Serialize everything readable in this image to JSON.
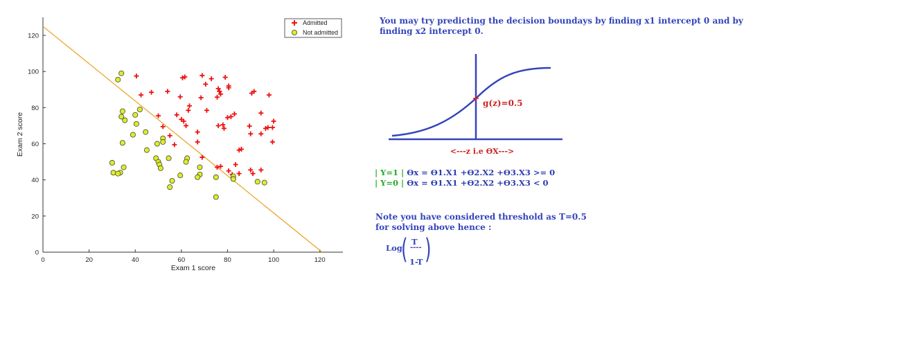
{
  "chart_data": {
    "type": "scatter",
    "xlabel": "Exam 1 score",
    "ylabel": "Exam 2 score",
    "xlim": [
      0,
      130
    ],
    "ylim": [
      0,
      130
    ],
    "xticks": [
      0,
      20,
      40,
      60,
      80,
      100,
      120
    ],
    "yticks": [
      0,
      20,
      40,
      60,
      80,
      100,
      120
    ],
    "grid": false,
    "legend_position": "top-right",
    "series": [
      {
        "name": "Admitted",
        "marker": "plus",
        "color": "#ee1111",
        "points": [
          [
            40.5,
            97.5
          ],
          [
            60.5,
            96.5
          ],
          [
            61.5,
            97.0
          ],
          [
            69,
            97.8
          ],
          [
            79,
            96.8
          ],
          [
            73,
            96
          ],
          [
            70.5,
            93
          ],
          [
            80.5,
            92
          ],
          [
            80.5,
            91
          ],
          [
            76,
            90.5
          ],
          [
            76.5,
            89
          ],
          [
            77,
            87.5
          ],
          [
            75.5,
            85.8
          ],
          [
            91.5,
            89
          ],
          [
            90.5,
            88
          ],
          [
            98,
            87
          ],
          [
            42.5,
            87
          ],
          [
            47,
            88.5
          ],
          [
            54,
            89
          ],
          [
            59.5,
            86
          ],
          [
            68.5,
            85.5
          ],
          [
            63.5,
            81
          ],
          [
            63,
            78.5
          ],
          [
            71,
            78.5
          ],
          [
            81.5,
            75
          ],
          [
            83,
            76.5
          ],
          [
            80,
            74.5
          ],
          [
            94.5,
            77
          ],
          [
            50,
            75.5
          ],
          [
            58,
            76
          ],
          [
            60,
            73.5
          ],
          [
            61,
            72.5
          ],
          [
            62,
            70
          ],
          [
            52,
            69.5
          ],
          [
            76,
            70
          ],
          [
            78,
            70.5
          ],
          [
            78.5,
            68.5
          ],
          [
            89.5,
            69.8
          ],
          [
            97.5,
            69
          ],
          [
            99.5,
            69
          ],
          [
            100,
            72.5
          ],
          [
            96.5,
            68.5
          ],
          [
            67,
            66.5
          ],
          [
            90,
            65.5
          ],
          [
            94.5,
            65.5
          ],
          [
            55,
            64.5
          ],
          [
            57,
            59.5
          ],
          [
            67,
            61
          ],
          [
            99.5,
            61
          ],
          [
            85,
            56.5
          ],
          [
            86,
            57
          ],
          [
            69,
            52.5
          ],
          [
            83.5,
            48.5
          ],
          [
            77,
            47.5
          ],
          [
            75.5,
            47
          ],
          [
            80.5,
            45
          ],
          [
            90,
            45.5
          ],
          [
            94.5,
            45.5
          ],
          [
            91,
            43.5
          ],
          [
            85,
            43.5
          ],
          [
            82,
            43
          ]
        ]
      },
      {
        "name": "Not admitted",
        "marker": "circle",
        "color": "#ddee22",
        "points": [
          [
            34,
            99
          ],
          [
            32.5,
            95.5
          ],
          [
            42,
            79
          ],
          [
            34.5,
            78
          ],
          [
            34,
            75
          ],
          [
            35.5,
            73
          ],
          [
            40,
            76
          ],
          [
            40.5,
            71
          ],
          [
            44.5,
            66.5
          ],
          [
            39,
            65
          ],
          [
            52,
            63
          ],
          [
            52,
            61
          ],
          [
            34.5,
            60.5
          ],
          [
            49.5,
            60
          ],
          [
            45,
            56.5
          ],
          [
            49,
            52
          ],
          [
            54.5,
            52
          ],
          [
            62.5,
            52
          ],
          [
            50,
            50
          ],
          [
            50.5,
            48.5
          ],
          [
            51,
            46.5
          ],
          [
            62,
            50
          ],
          [
            68,
            47
          ],
          [
            30,
            49.5
          ],
          [
            35,
            47
          ],
          [
            33.5,
            44
          ],
          [
            30.5,
            44
          ],
          [
            32.5,
            43.5
          ],
          [
            59.5,
            42.5
          ],
          [
            68,
            43
          ],
          [
            67,
            41.5
          ],
          [
            75,
            41.5
          ],
          [
            82.5,
            42
          ],
          [
            82.5,
            40.5
          ],
          [
            56,
            39.5
          ],
          [
            93,
            39
          ],
          [
            96,
            38.5
          ],
          [
            55,
            36
          ],
          [
            75,
            30.5
          ]
        ]
      }
    ],
    "decision_boundary": {
      "x": [
        0,
        121
      ],
      "y": [
        125,
        0
      ],
      "color": "#e8a21e"
    }
  },
  "notes": {
    "intro": "You may try predicting the decision boundays by finding x1 intercept 0 and by finding x2 intercept 0.",
    "sigmoid_label": "g(z)=0.5",
    "z_axis_label": "<---z i.e ϴX--->",
    "eq1_prefix": "| Y=1 |",
    "eq1_body": " ϴx = ϴ1.X1 +ϴ2.X2 +ϴ3.X3 >= 0",
    "eq0_prefix": "| Y=0 |",
    "eq0_body": " ϴx = ϴ1.X1 +ϴ2.X2 +ϴ3.X3 < 0",
    "threshold_line1": "Note you have considered threshold as T=0.5",
    "threshold_line2": "for solving above hence :",
    "log_label": "Log",
    "frac_top": "T",
    "frac_line": "----",
    "frac_bottom": "1-T"
  },
  "colors": {
    "text_blue": "#3344bb",
    "sigmoid_blue": "#3344bb",
    "red_label": "#cc2222",
    "green_label": "#22aa22"
  }
}
